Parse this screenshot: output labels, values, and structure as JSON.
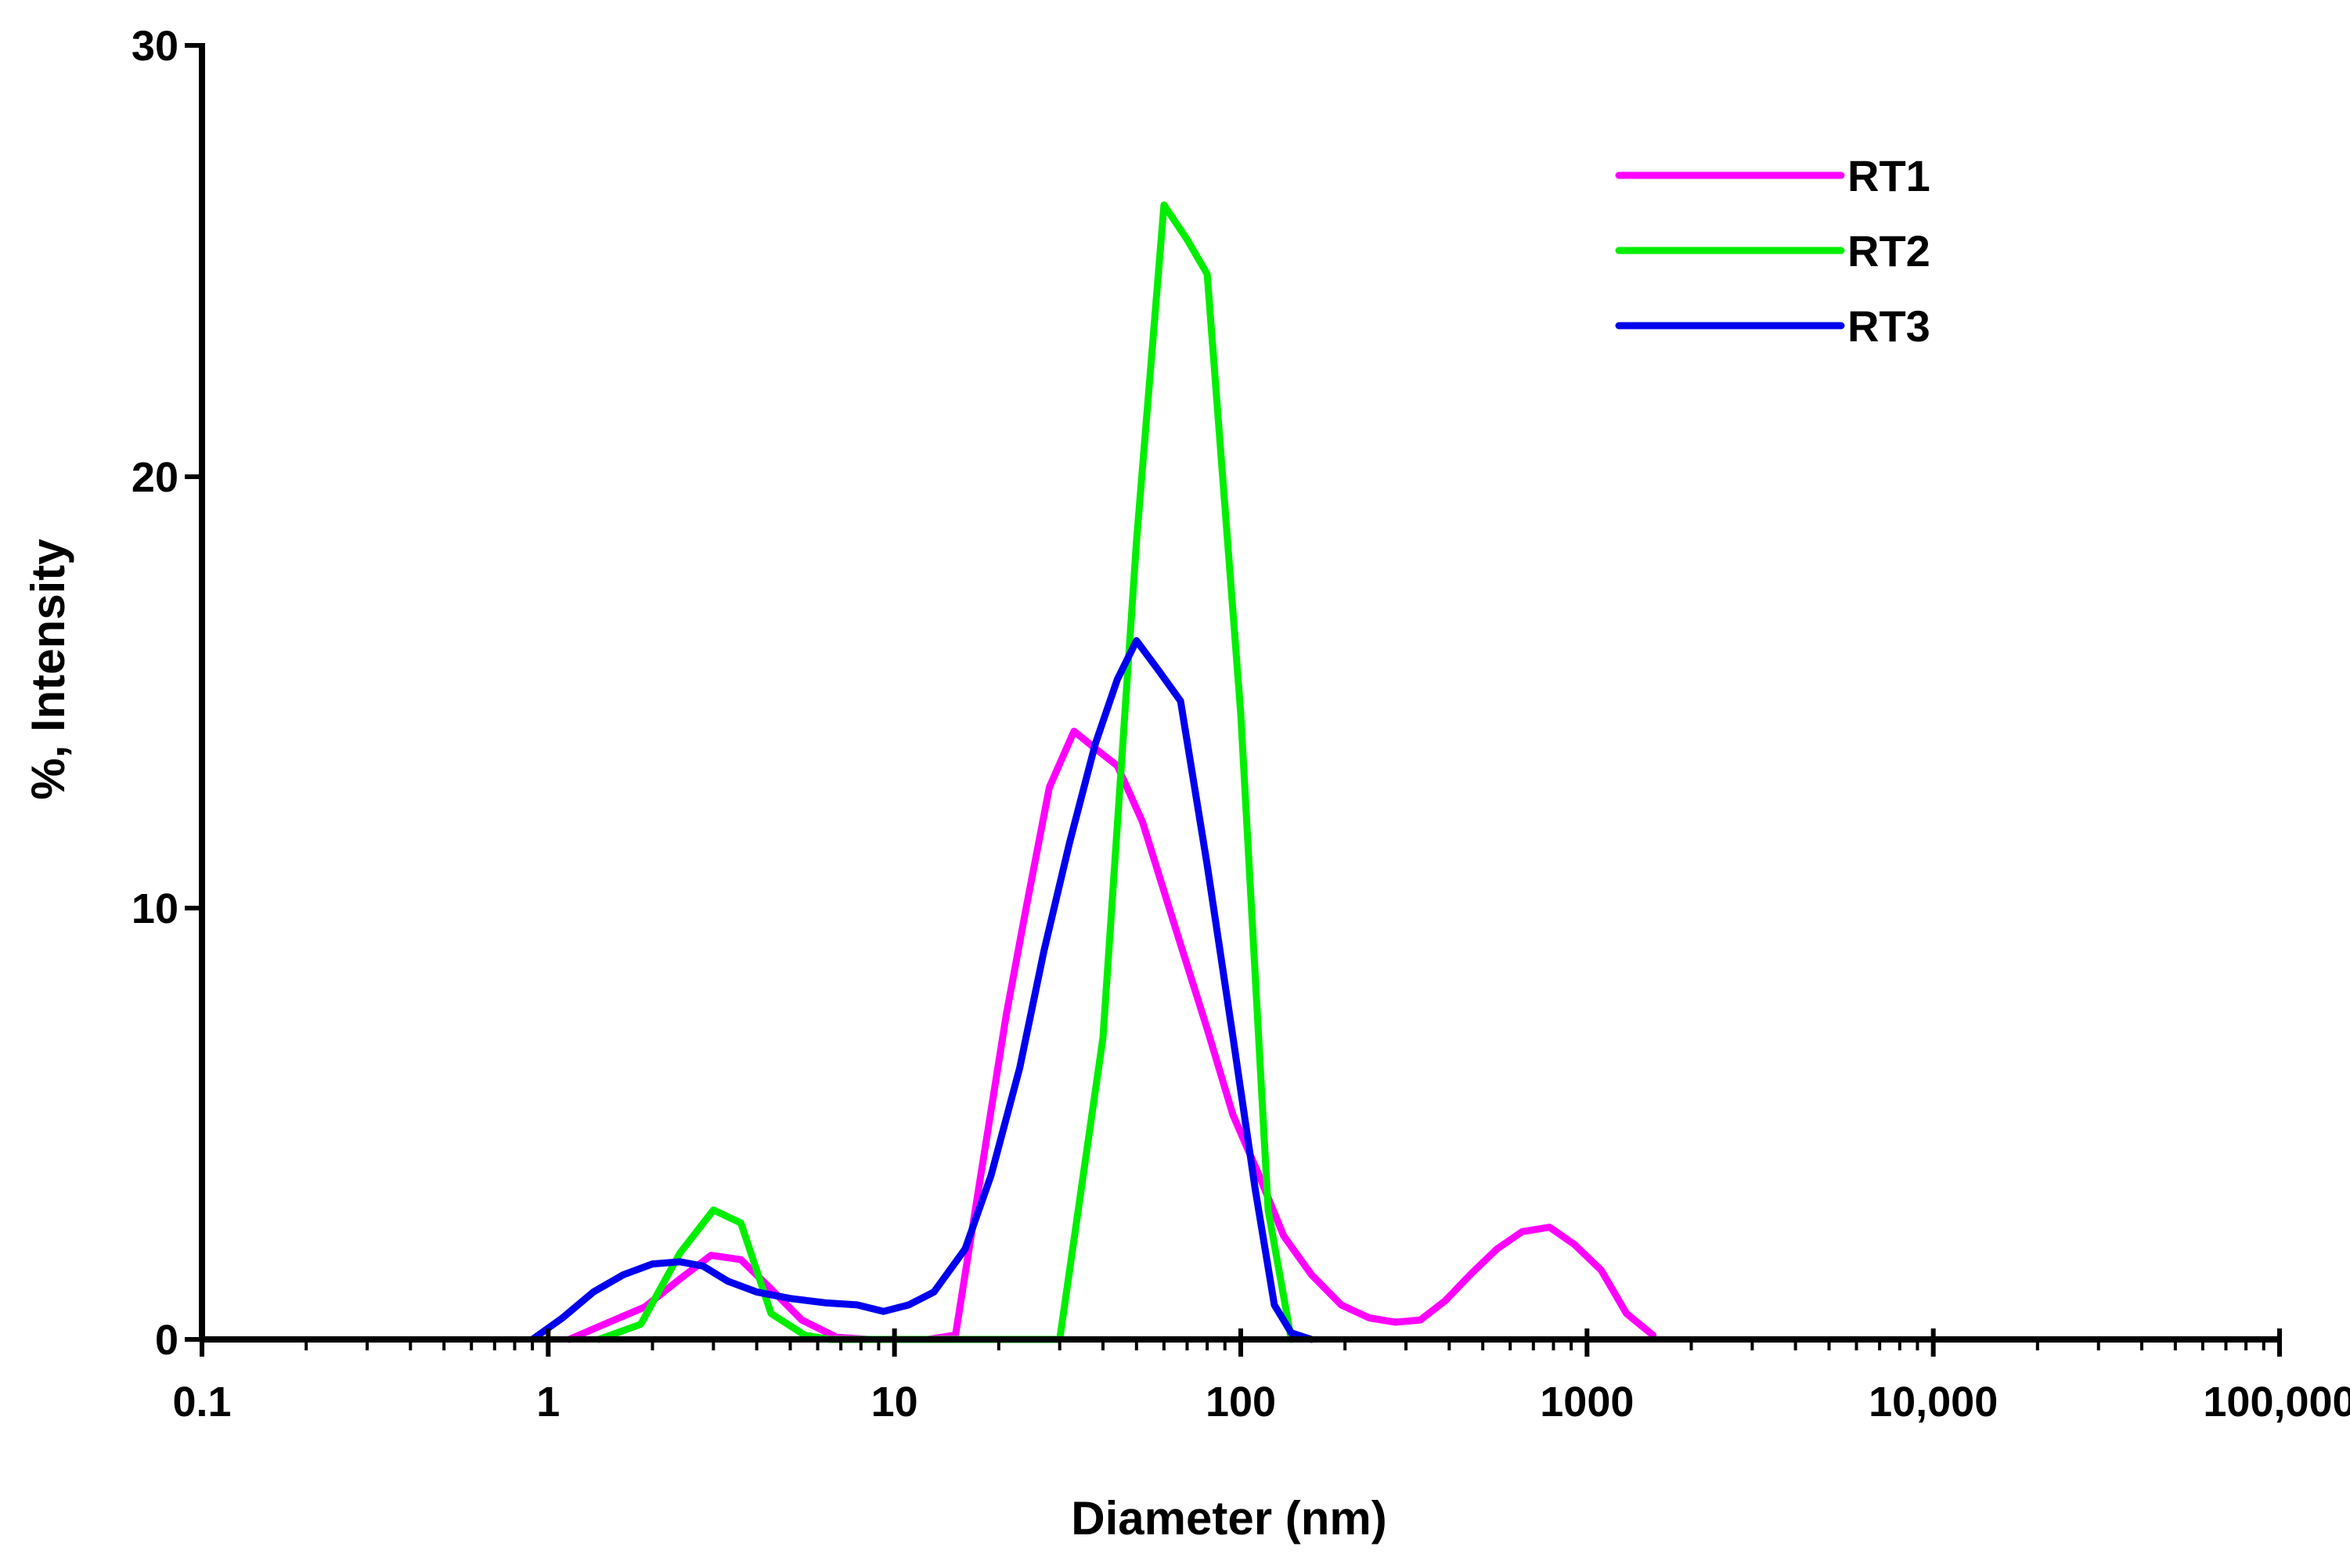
{
  "chart_data": {
    "type": "line",
    "title": "",
    "xlabel": "Diameter (nm)",
    "ylabel": "%, Intensity",
    "xscale": "log",
    "xlim": [
      0.1,
      100000
    ],
    "ylim": [
      0,
      30
    ],
    "x_ticks": [
      0.1,
      1,
      10,
      100,
      1000,
      10000,
      100000
    ],
    "x_tick_labels": [
      "0.1",
      "1",
      "10",
      "100",
      "1000",
      "10,000",
      "100,000"
    ],
    "y_ticks": [
      0,
      10,
      20,
      30
    ],
    "y_tick_labels": [
      "0",
      "10",
      "20",
      "30"
    ],
    "grid": false,
    "legend_position": "top-right",
    "series": [
      {
        "name": "RT1",
        "color": "#ff00ff",
        "x": [
          1.15,
          1.45,
          1.9,
          2.4,
          2.95,
          3.6,
          4.3,
          5.4,
          6.8,
          8.5,
          10.5,
          12.5,
          15,
          17.5,
          21,
          24,
          28,
          33,
          38,
          44,
          52,
          65,
          80,
          95,
          113,
          133,
          160,
          195,
          235,
          280,
          330,
          390,
          460,
          550,
          650,
          780,
          920,
          1100,
          1300,
          1550
        ],
        "values": [
          0,
          0.35,
          0.75,
          1.4,
          1.95,
          1.85,
          1.25,
          0.45,
          0.05,
          0,
          0,
          0,
          0.1,
          3.5,
          7.5,
          10,
          12.8,
          14.1,
          13.7,
          13.3,
          12,
          9.5,
          7.2,
          5.2,
          3.8,
          2.4,
          1.5,
          0.8,
          0.5,
          0.4,
          0.45,
          0.9,
          1.5,
          2.1,
          2.5,
          2.6,
          2.2,
          1.6,
          0.6,
          0.1
        ]
      },
      {
        "name": "RT2",
        "color": "#00ee00",
        "x": [
          1.4,
          1.85,
          2.4,
          3.0,
          3.6,
          4.4,
          5.5,
          6.5,
          10,
          20,
          30,
          40,
          50,
          60,
          70,
          80,
          100,
          120,
          140
        ],
        "values": [
          0,
          0.35,
          2.0,
          3.0,
          2.7,
          0.6,
          0.1,
          0,
          0,
          0,
          0,
          7,
          18.5,
          26.3,
          25.5,
          24.7,
          14.5,
          3,
          0
        ]
      },
      {
        "name": "RT3",
        "color": "#0000ee",
        "x": [
          0.9,
          1.1,
          1.35,
          1.65,
          2.0,
          2.4,
          2.8,
          3.3,
          4.0,
          5.0,
          6.3,
          7.8,
          9.3,
          11,
          13,
          16,
          19,
          23,
          27,
          32,
          38,
          44,
          50,
          58,
          67,
          80,
          95,
          110,
          125,
          140,
          160
        ],
        "values": [
          0,
          0.5,
          1.1,
          1.5,
          1.75,
          1.8,
          1.7,
          1.35,
          1.1,
          0.95,
          0.85,
          0.8,
          0.65,
          0.8,
          1.1,
          2.1,
          3.8,
          6.3,
          9,
          11.5,
          13.8,
          15.3,
          16.2,
          15.5,
          14.8,
          11,
          7,
          3.5,
          0.8,
          0.15,
          0
        ]
      }
    ]
  }
}
